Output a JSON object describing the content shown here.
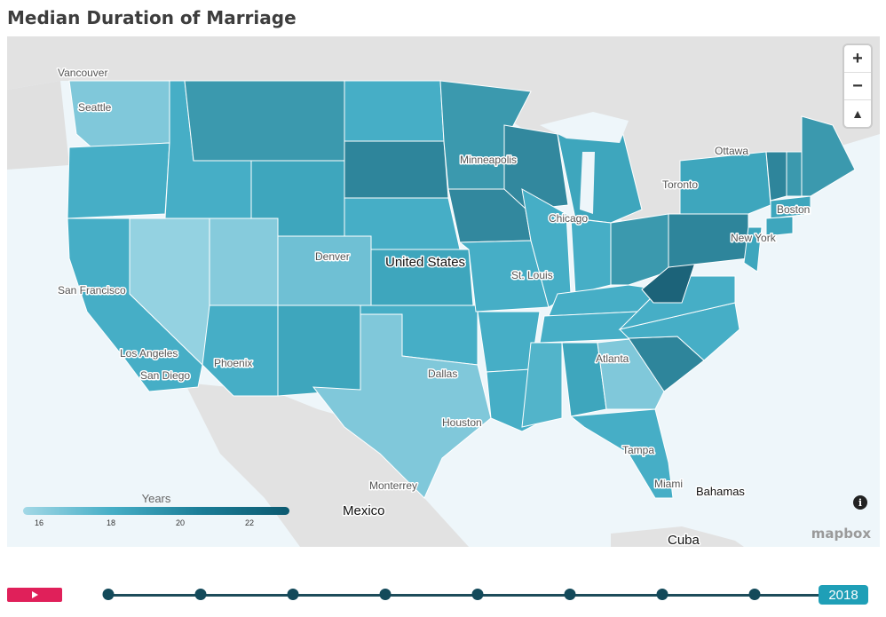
{
  "title": "Median Duration of Marriage",
  "legend": {
    "title": "Years",
    "ticks": [
      "16",
      "18",
      "20",
      "22"
    ]
  },
  "map_labels": {
    "cities": [
      "Vancouver",
      "Seattle",
      "Ottawa",
      "Minneapolis",
      "Toronto",
      "Boston",
      "Chicago",
      "New York",
      "Denver",
      "San Francisco",
      "St. Louis",
      "Los Angeles",
      "San Diego",
      "Phoenix",
      "Atlanta",
      "Dallas",
      "Houston",
      "Tampa",
      "Miami",
      "Monterrey"
    ],
    "countries": [
      "United States",
      "Mexico",
      "Cuba",
      "Bahamas"
    ]
  },
  "controls": {
    "zoom_in": "+",
    "zoom_out": "−",
    "compass": "▲"
  },
  "attribution": {
    "info": "i",
    "logo": "mapbox"
  },
  "timeline": {
    "selected_year": "2018",
    "steps": 9
  },
  "colors": {
    "light": "#a3d8e6",
    "mid": "#46aec6",
    "dark": "#1b7d97",
    "darkest": "#0c5a70",
    "play": "#e0205a",
    "badge": "#1f9fb7"
  }
}
